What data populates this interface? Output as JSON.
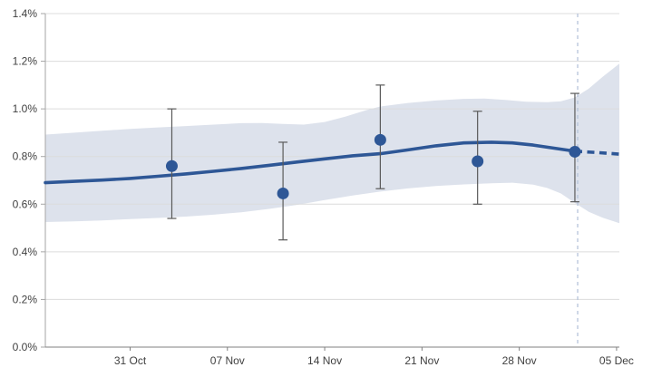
{
  "chart_data": {
    "type": "line",
    "title": "",
    "grid": true,
    "legend": false,
    "colors": {
      "line": "#2e5796",
      "band": "#dde2ec",
      "error_bar": "#595959",
      "gridline": "#dcdcdc",
      "y_axis_line": "#a6a6a6",
      "x_axis_line": "#808080",
      "reference_line": "#b6c3da",
      "tick_label": "#404040",
      "background": "#ffffff"
    },
    "y_axis": {
      "unit": "%",
      "range": [
        0.0,
        1.4
      ],
      "tick_values": [
        0.0,
        0.2,
        0.4,
        0.6,
        0.8,
        1.0,
        1.2,
        1.4
      ],
      "tick_labels": [
        "0.0%",
        "0.2%",
        "0.4%",
        "0.6%",
        "0.8%",
        "1.0%",
        "1.2%",
        "1.4%"
      ]
    },
    "x_axis": {
      "note_unit": "days relative to 31 Oct tick",
      "range_days": [
        -6.1,
        35.2
      ],
      "tick_days": [
        0,
        7,
        14,
        21,
        28,
        35
      ],
      "tick_labels": [
        "31 Oct",
        "07 Nov",
        "14 Nov",
        "21 Nov",
        "28 Nov",
        "05 Dec"
      ]
    },
    "band": {
      "name": "credible-interval-band",
      "upper": [
        [
          -6.1,
          0.892
        ],
        [
          -4,
          0.9
        ],
        [
          -2,
          0.908
        ],
        [
          0,
          0.916
        ],
        [
          2,
          0.922
        ],
        [
          4,
          0.928
        ],
        [
          6,
          0.934
        ],
        [
          8,
          0.94
        ],
        [
          9.5,
          0.941
        ],
        [
          11,
          0.937
        ],
        [
          12.5,
          0.934
        ],
        [
          14,
          0.945
        ],
        [
          15.5,
          0.968
        ],
        [
          17,
          0.995
        ],
        [
          18,
          1.01
        ],
        [
          20,
          1.025
        ],
        [
          22,
          1.035
        ],
        [
          24,
          1.042
        ],
        [
          25.5,
          1.043
        ],
        [
          27,
          1.038
        ],
        [
          28.5,
          1.03
        ],
        [
          30,
          1.028
        ],
        [
          31,
          1.032
        ],
        [
          32,
          1.048
        ],
        [
          33,
          1.085
        ],
        [
          34,
          1.135
        ],
        [
          35.2,
          1.19
        ]
      ],
      "lower": [
        [
          -6.1,
          0.525
        ],
        [
          -4,
          0.528
        ],
        [
          -2,
          0.532
        ],
        [
          0,
          0.537
        ],
        [
          2,
          0.542
        ],
        [
          4,
          0.548
        ],
        [
          6,
          0.556
        ],
        [
          8,
          0.566
        ],
        [
          10,
          0.58
        ],
        [
          12,
          0.597
        ],
        [
          14,
          0.617
        ],
        [
          16,
          0.636
        ],
        [
          18,
          0.653
        ],
        [
          20,
          0.666
        ],
        [
          22,
          0.676
        ],
        [
          24,
          0.683
        ],
        [
          26,
          0.688
        ],
        [
          27.5,
          0.69
        ],
        [
          29,
          0.682
        ],
        [
          30,
          0.668
        ],
        [
          31,
          0.645
        ],
        [
          32,
          0.605
        ],
        [
          33,
          0.568
        ],
        [
          34,
          0.543
        ],
        [
          35.2,
          0.52
        ]
      ]
    },
    "line_solid": {
      "name": "modelled-estimate-line",
      "points": [
        [
          -6.1,
          0.69
        ],
        [
          -4,
          0.696
        ],
        [
          -2,
          0.701
        ],
        [
          0,
          0.708
        ],
        [
          2,
          0.717
        ],
        [
          4,
          0.727
        ],
        [
          6,
          0.738
        ],
        [
          8,
          0.75
        ],
        [
          10,
          0.763
        ],
        [
          12,
          0.777
        ],
        [
          14,
          0.79
        ],
        [
          16,
          0.803
        ],
        [
          18,
          0.812
        ],
        [
          20,
          0.828
        ],
        [
          22,
          0.845
        ],
        [
          24,
          0.857
        ],
        [
          26,
          0.86
        ],
        [
          27.5,
          0.857
        ],
        [
          29,
          0.848
        ],
        [
          30.5,
          0.835
        ],
        [
          32,
          0.822
        ]
      ]
    },
    "line_dashed": {
      "name": "projection-line",
      "points": [
        [
          32,
          0.822
        ],
        [
          33.5,
          0.817
        ],
        [
          35.2,
          0.81
        ]
      ]
    },
    "point_estimates": {
      "name": "weekly-point-estimates",
      "points": [
        {
          "day": 3,
          "value": 0.76,
          "lo": 0.54,
          "hi": 1.0
        },
        {
          "day": 11,
          "value": 0.645,
          "lo": 0.45,
          "hi": 0.86
        },
        {
          "day": 18,
          "value": 0.87,
          "lo": 0.665,
          "hi": 1.1
        },
        {
          "day": 25,
          "value": 0.78,
          "lo": 0.6,
          "hi": 0.99
        },
        {
          "day": 32,
          "value": 0.82,
          "lo": 0.61,
          "hi": 1.065
        }
      ]
    },
    "annotations": [
      {
        "type": "vline",
        "day": 32.2,
        "style": "dashed"
      }
    ]
  }
}
